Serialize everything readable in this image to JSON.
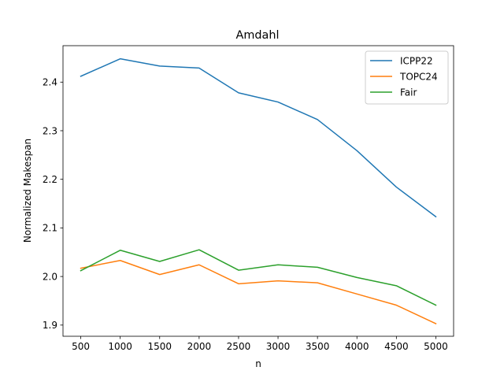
{
  "chart_data": {
    "type": "line",
    "title": "Amdahl",
    "xlabel": "n",
    "ylabel": "Normalized Makespan",
    "x": [
      500,
      1000,
      1500,
      2000,
      2500,
      3000,
      3500,
      4000,
      4500,
      5000
    ],
    "xticks": [
      "500",
      "1000",
      "1500",
      "2000",
      "2500",
      "3000",
      "3500",
      "4000",
      "4500",
      "5000"
    ],
    "yticks": [
      "1.9",
      "2.0",
      "2.1",
      "2.2",
      "2.3",
      "2.4"
    ],
    "ytick_values": [
      1.9,
      2.0,
      2.1,
      2.2,
      2.3,
      2.4
    ],
    "xlim": [
      275,
      5225
    ],
    "ylim": [
      1.877,
      2.475
    ],
    "grid": false,
    "legend_position": "top-right",
    "series": [
      {
        "name": "ICPP22",
        "color": "#1f77b4",
        "values": [
          2.412,
          2.448,
          2.433,
          2.429,
          2.378,
          2.359,
          2.323,
          2.259,
          2.184,
          2.123
        ]
      },
      {
        "name": "TOPC24",
        "color": "#ff7f0e",
        "values": [
          2.017,
          2.033,
          2.004,
          2.024,
          1.985,
          1.991,
          1.987,
          1.964,
          1.941,
          1.903
        ]
      },
      {
        "name": "Fair",
        "color": "#2ca02c",
        "values": [
          2.012,
          2.054,
          2.031,
          2.055,
          2.013,
          2.024,
          2.019,
          1.998,
          1.981,
          1.941
        ]
      }
    ]
  }
}
